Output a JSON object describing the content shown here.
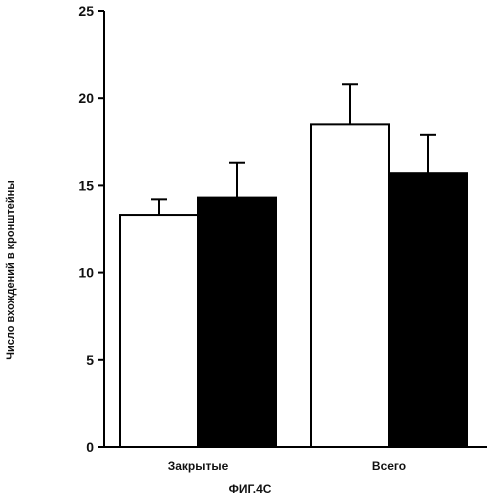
{
  "chart_data": {
    "type": "bar",
    "categories": [
      "Закрытые",
      "Всего"
    ],
    "series": [
      {
        "values": [
          13.3,
          18.5
        ],
        "errors": [
          0.9,
          2.3
        ],
        "color": "#ffffff"
      },
      {
        "values": [
          14.3,
          15.7
        ],
        "errors": [
          2.0,
          2.2
        ],
        "color": "#000000"
      }
    ],
    "ylabel": "Число вхождений в кронштейны",
    "xlabel": "ФИГ.4С",
    "ylim": [
      0,
      25
    ],
    "yticks": [
      0,
      5,
      10,
      15,
      20,
      25
    ],
    "grid": false
  }
}
